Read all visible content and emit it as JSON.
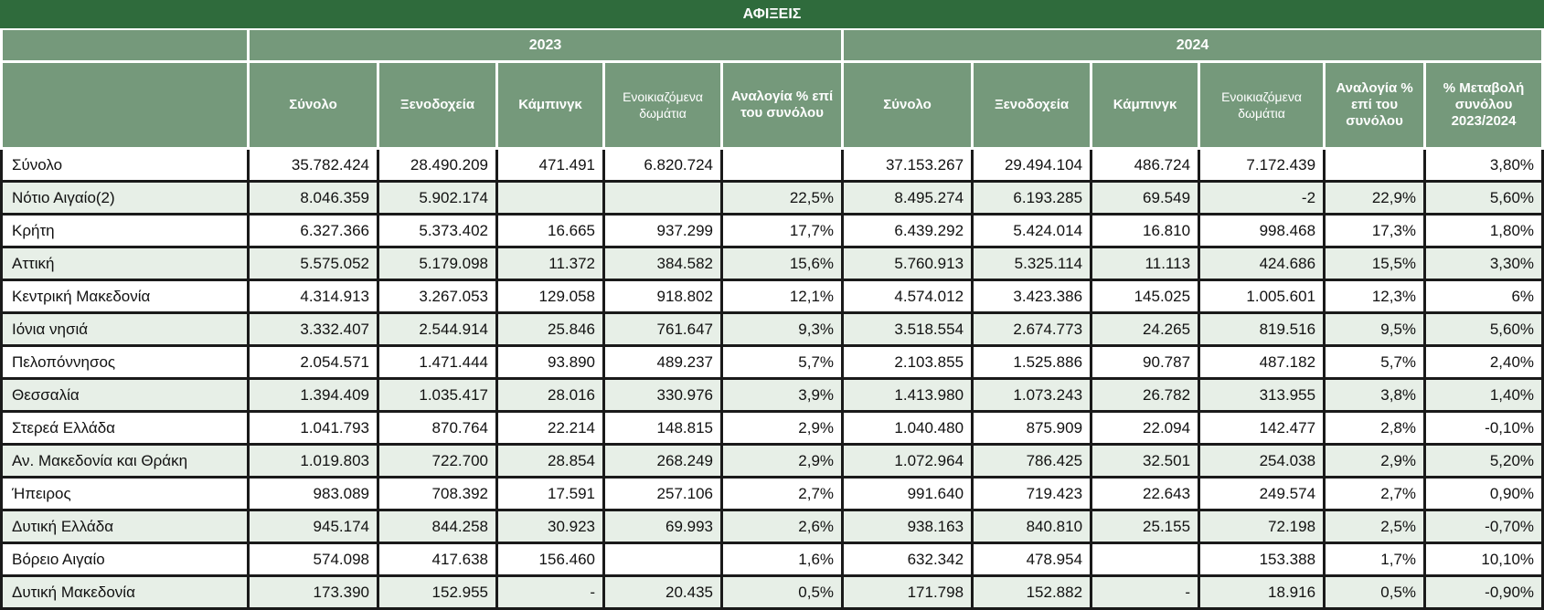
{
  "title": "ΑΦΙΞΕΙΣ",
  "years": [
    "2023",
    "2024"
  ],
  "columns_2023": [
    "Σύνολο",
    "Ξενοδοχεία",
    "Κάμπινγκ",
    "Ενοικιαζόμενα δωμάτια",
    "Αναλογία % επί του συνόλου"
  ],
  "columns_2024": [
    "Σύνολο",
    "Ξενοδοχεία",
    "Κάμπινγκ",
    "Ενοικιαζόμενα δωμάτια",
    "Αναλογία % επί του συνόλου",
    "% Μεταβολή συνόλου 2023/2024"
  ],
  "rows": [
    [
      "Σύνολο",
      "35.782.424",
      "28.490.209",
      "471.491",
      "6.820.724",
      "",
      "37.153.267",
      "29.494.104",
      "486.724",
      "7.172.439",
      "",
      "3,80%"
    ],
    [
      "Νότιο Αιγαίο(2)",
      "8.046.359",
      "5.902.174",
      "",
      "",
      "22,5%",
      "8.495.274",
      "6.193.285",
      "69.549",
      "-2",
      "22,9%",
      "5,60%"
    ],
    [
      "Κρήτη",
      "6.327.366",
      "5.373.402",
      "16.665",
      "937.299",
      "17,7%",
      "6.439.292",
      "5.424.014",
      "16.810",
      "998.468",
      "17,3%",
      "1,80%"
    ],
    [
      "Αττική",
      "5.575.052",
      "5.179.098",
      "11.372",
      "384.582",
      "15,6%",
      "5.760.913",
      "5.325.114",
      "11.113",
      "424.686",
      "15,5%",
      "3,30%"
    ],
    [
      "Κεντρική Μακεδονία",
      "4.314.913",
      "3.267.053",
      "129.058",
      "918.802",
      "12,1%",
      "4.574.012",
      "3.423.386",
      "145.025",
      "1.005.601",
      "12,3%",
      "6%"
    ],
    [
      "Ιόνια νησιά",
      "3.332.407",
      "2.544.914",
      "25.846",
      "761.647",
      "9,3%",
      "3.518.554",
      "2.674.773",
      "24.265",
      "819.516",
      "9,5%",
      "5,60%"
    ],
    [
      "Πελοπόννησος",
      "2.054.571",
      "1.471.444",
      "93.890",
      "489.237",
      "5,7%",
      "2.103.855",
      "1.525.886",
      "90.787",
      "487.182",
      "5,7%",
      "2,40%"
    ],
    [
      "Θεσσαλία",
      "1.394.409",
      "1.035.417",
      "28.016",
      "330.976",
      "3,9%",
      "1.413.980",
      "1.073.243",
      "26.782",
      "313.955",
      "3,8%",
      "1,40%"
    ],
    [
      "Στερεά Ελλάδα",
      "1.041.793",
      "870.764",
      "22.214",
      "148.815",
      "2,9%",
      "1.040.480",
      "875.909",
      "22.094",
      "142.477",
      "2,8%",
      "-0,10%"
    ],
    [
      "Αν. Μακεδονία και Θράκη",
      "1.019.803",
      "722.700",
      "28.854",
      "268.249",
      "2,9%",
      "1.072.964",
      "786.425",
      "32.501",
      "254.038",
      "2,9%",
      "5,20%"
    ],
    [
      "Ήπειρος",
      "983.089",
      "708.392",
      "17.591",
      "257.106",
      "2,7%",
      "991.640",
      "719.423",
      "22.643",
      "249.574",
      "2,7%",
      "0,90%"
    ],
    [
      "Δυτική Ελλάδα",
      "945.174",
      "844.258",
      "30.923",
      "69.993",
      "2,6%",
      "938.163",
      "840.810",
      "25.155",
      "72.198",
      "2,5%",
      "-0,70%"
    ],
    [
      "Βόρειο Αιγαίο",
      "574.098",
      "417.638",
      "156.460",
      "",
      "1,6%",
      "632.342",
      "478.954",
      "",
      "153.388",
      "1,7%",
      "10,10%"
    ],
    [
      "Δυτική Μακεδονία",
      "173.390",
      "152.955",
      "-",
      "20.435",
      "0,5%",
      "171.798",
      "152.882",
      "-",
      "18.916",
      "0,5%",
      "-0,90%"
    ]
  ]
}
